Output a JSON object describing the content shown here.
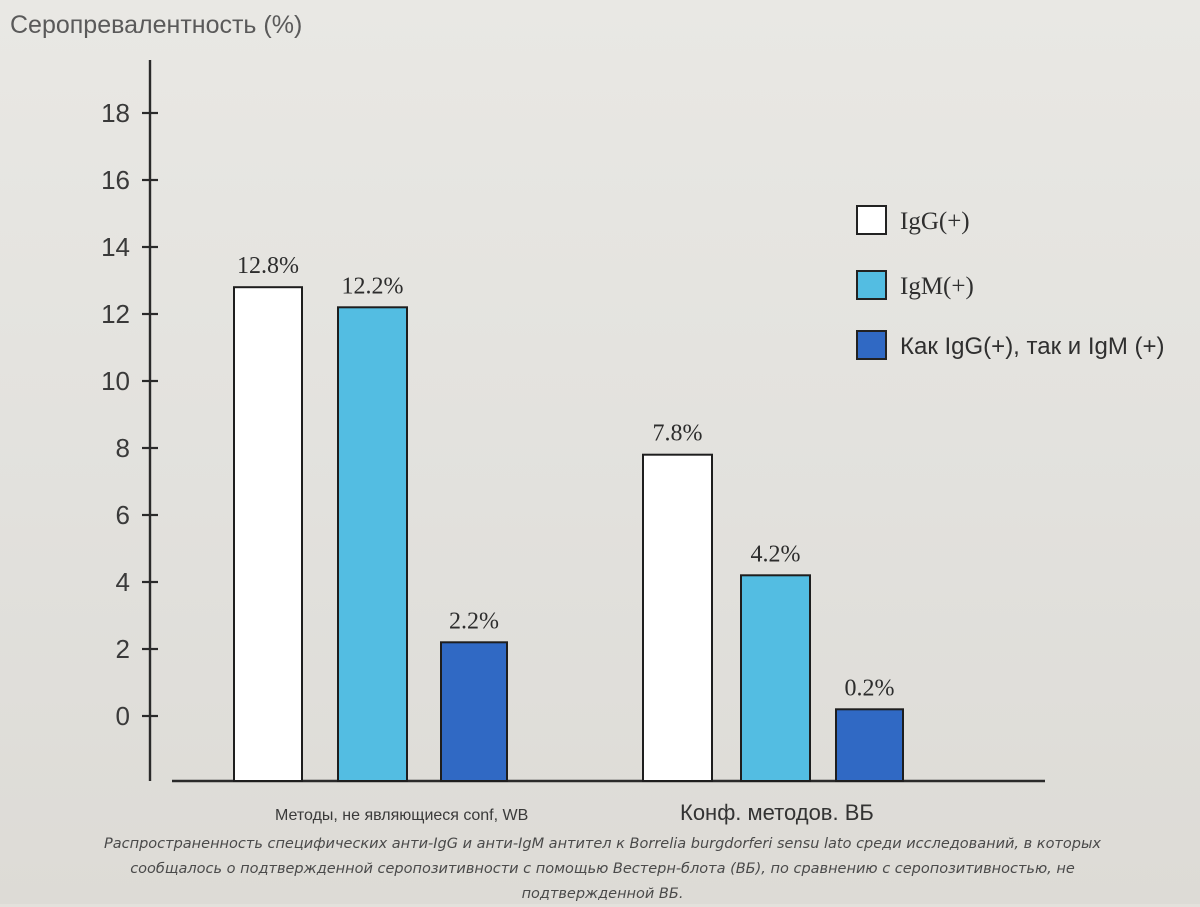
{
  "colors": {
    "igg": "#ffffff",
    "igm": "#53bde2",
    "both": "#3069c4",
    "axis": "#2a2a2a"
  },
  "chart_data": {
    "type": "bar",
    "ylabel": "Серопревалентность (%)",
    "yticks": [
      0,
      2,
      4,
      6,
      8,
      10,
      12,
      14,
      16,
      18
    ],
    "ylim": [
      0,
      18
    ],
    "categories": [
      "Методы, не являющиеся conf, WB",
      "Конф. методов. ВБ"
    ],
    "series": [
      {
        "name": "IgG(+)",
        "values": [
          12.8,
          7.8
        ],
        "labels": [
          "12.8%",
          "7.8%"
        ],
        "color": "#ffffff"
      },
      {
        "name": "IgM(+)",
        "values": [
          12.2,
          4.2
        ],
        "labels": [
          "12.2%",
          "4.2%"
        ],
        "color": "#53bde2"
      },
      {
        "name": "Как IgG(+), так и IgM (+)",
        "values": [
          2.2,
          0.2
        ],
        "labels": [
          "2.2%",
          "0.2%"
        ],
        "color": "#3069c4"
      }
    ],
    "legend": "right",
    "grid": false
  },
  "caption": "Распространенность специфических анти-IgG и анти-IgM антител к Borrelia burgdorferi sensu lato среди исследований, в которых сообщалось о подтвержденной серопозитивности с помощью Вестерн-блота (ВБ), по сравнению с серопозитивностью, не подтвержденной ВБ."
}
